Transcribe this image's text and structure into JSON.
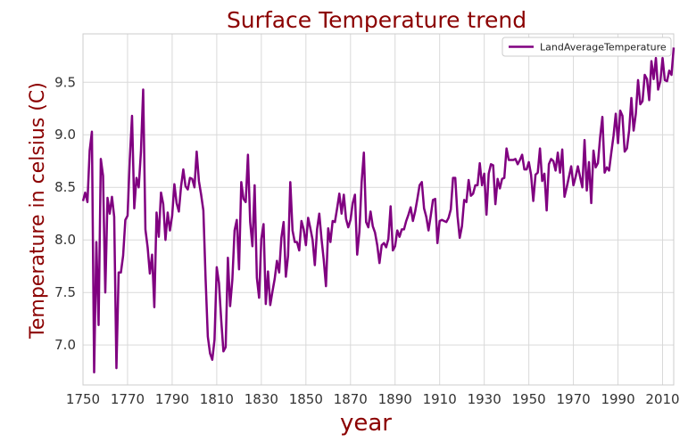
{
  "colors": {
    "line": "#800080",
    "title": "#8b0000",
    "grid": "#d9d9d9",
    "frame": "#cccccc",
    "tick_text": "#333333",
    "background": "#ffffff"
  },
  "chart_data": {
    "type": "line",
    "title": "Surface Temperature trend",
    "xlabel": "year",
    "ylabel": "Temperature in celsius (C)",
    "xlim": [
      1750,
      2015
    ],
    "ylim": [
      6.62,
      9.96
    ],
    "xticks": [
      1750,
      1770,
      1790,
      1810,
      1830,
      1850,
      1870,
      1890,
      1910,
      1930,
      1950,
      1970,
      1990,
      2010
    ],
    "yticks": [
      7.0,
      7.5,
      8.0,
      8.5,
      9.0,
      9.5
    ],
    "grid": true,
    "legend": {
      "position": "top-right",
      "entries": [
        "LandAverageTemperature"
      ]
    },
    "series": [
      {
        "name": "LandAverageTemperature",
        "x": [
          1750,
          1751,
          1752,
          1753,
          1754,
          1755,
          1756,
          1757,
          1758,
          1759,
          1760,
          1761,
          1762,
          1763,
          1764,
          1765,
          1766,
          1767,
          1768,
          1769,
          1770,
          1771,
          1772,
          1773,
          1774,
          1775,
          1776,
          1777,
          1778,
          1779,
          1780,
          1781,
          1782,
          1783,
          1784,
          1785,
          1786,
          1787,
          1788,
          1789,
          1790,
          1791,
          1792,
          1793,
          1794,
          1795,
          1796,
          1797,
          1798,
          1799,
          1800,
          1801,
          1802,
          1803,
          1804,
          1805,
          1806,
          1807,
          1808,
          1809,
          1810,
          1811,
          1812,
          1813,
          1814,
          1815,
          1816,
          1817,
          1818,
          1819,
          1820,
          1821,
          1822,
          1823,
          1824,
          1825,
          1826,
          1827,
          1828,
          1829,
          1830,
          1831,
          1832,
          1833,
          1834,
          1835,
          1836,
          1837,
          1838,
          1839,
          1840,
          1841,
          1842,
          1843,
          1844,
          1845,
          1846,
          1847,
          1848,
          1849,
          1850,
          1851,
          1852,
          1853,
          1854,
          1855,
          1856,
          1857,
          1858,
          1859,
          1860,
          1861,
          1862,
          1863,
          1864,
          1865,
          1866,
          1867,
          1868,
          1869,
          1870,
          1871,
          1872,
          1873,
          1874,
          1875,
          1876,
          1877,
          1878,
          1879,
          1880,
          1881,
          1882,
          1883,
          1884,
          1885,
          1886,
          1887,
          1888,
          1889,
          1890,
          1891,
          1892,
          1893,
          1894,
          1895,
          1896,
          1897,
          1898,
          1899,
          1900,
          1901,
          1902,
          1903,
          1904,
          1905,
          1906,
          1907,
          1908,
          1909,
          1910,
          1911,
          1912,
          1913,
          1914,
          1915,
          1916,
          1917,
          1918,
          1919,
          1920,
          1921,
          1922,
          1923,
          1924,
          1925,
          1926,
          1927,
          1928,
          1929,
          1930,
          1931,
          1932,
          1933,
          1934,
          1935,
          1936,
          1937,
          1938,
          1939,
          1940,
          1941,
          1942,
          1943,
          1944,
          1945,
          1946,
          1947,
          1948,
          1949,
          1950,
          1951,
          1952,
          1953,
          1954,
          1955,
          1956,
          1957,
          1958,
          1959,
          1960,
          1961,
          1962,
          1963,
          1964,
          1965,
          1966,
          1967,
          1968,
          1969,
          1970,
          1971,
          1972,
          1973,
          1974,
          1975,
          1976,
          1977,
          1978,
          1979,
          1980,
          1981,
          1982,
          1983,
          1984,
          1985,
          1986,
          1987,
          1988,
          1989,
          1990,
          1991,
          1992,
          1993,
          1994,
          1995,
          1996,
          1997,
          1998,
          1999,
          2000,
          2001,
          2002,
          2003,
          2004,
          2005,
          2006,
          2007,
          2008,
          2009,
          2010,
          2011,
          2012,
          2013,
          2014,
          2015
        ],
        "values": [
          8.37,
          8.45,
          8.36,
          8.85,
          9.03,
          6.74,
          7.98,
          7.19,
          8.77,
          8.61,
          7.5,
          8.4,
          8.25,
          8.41,
          8.22,
          6.78,
          7.69,
          7.69,
          7.85,
          8.19,
          8.23,
          8.77,
          9.18,
          8.3,
          8.59,
          8.5,
          8.84,
          9.43,
          8.1,
          7.93,
          7.68,
          7.86,
          7.36,
          8.26,
          8.03,
          8.45,
          8.34,
          8.0,
          8.26,
          8.09,
          8.23,
          8.53,
          8.35,
          8.27,
          8.51,
          8.67,
          8.51,
          8.48,
          8.59,
          8.58,
          8.5,
          8.84,
          8.56,
          8.43,
          8.28,
          7.63,
          7.08,
          6.92,
          6.86,
          7.05,
          7.74,
          7.59,
          7.24,
          6.94,
          6.98,
          7.83,
          7.37,
          7.62,
          8.09,
          8.19,
          7.72,
          8.55,
          8.39,
          8.36,
          8.81,
          8.17,
          7.94,
          8.52,
          7.64,
          7.45,
          8.01,
          8.15,
          7.39,
          7.7,
          7.38,
          7.51,
          7.63,
          7.8,
          7.69,
          8.02,
          8.17,
          7.65,
          7.85,
          8.55,
          8.09,
          7.98,
          7.98,
          7.9,
          8.18,
          8.1,
          7.95,
          8.21,
          8.11,
          8.0,
          7.76,
          8.1,
          8.25,
          8.01,
          7.81,
          7.56,
          8.11,
          7.98,
          8.18,
          8.17,
          8.3,
          8.44,
          8.25,
          8.43,
          8.2,
          8.12,
          8.19,
          8.35,
          8.43,
          7.86,
          8.08,
          8.55,
          8.83,
          8.17,
          8.12,
          8.27,
          8.13,
          8.07,
          7.95,
          7.78,
          7.95,
          7.97,
          7.93,
          8.01,
          8.32,
          7.9,
          7.94,
          8.09,
          8.03,
          8.1,
          8.1,
          8.18,
          8.24,
          8.31,
          8.18,
          8.27,
          8.39,
          8.52,
          8.55,
          8.3,
          8.22,
          8.09,
          8.23,
          8.38,
          8.39,
          7.97,
          8.18,
          8.19,
          8.18,
          8.17,
          8.21,
          8.29,
          8.59,
          8.59,
          8.23,
          8.02,
          8.13,
          8.38,
          8.36,
          8.57,
          8.42,
          8.44,
          8.52,
          8.52,
          8.73,
          8.52,
          8.63,
          8.24,
          8.63,
          8.72,
          8.71,
          8.34,
          8.58,
          8.49,
          8.58,
          8.59,
          8.87,
          8.76,
          8.76,
          8.76,
          8.77,
          8.72,
          8.76,
          8.81,
          8.67,
          8.67,
          8.74,
          8.62,
          8.37,
          8.62,
          8.64,
          8.87,
          8.56,
          8.63,
          8.28,
          8.72,
          8.77,
          8.75,
          8.66,
          8.83,
          8.64,
          8.86,
          8.41,
          8.5,
          8.6,
          8.7,
          8.52,
          8.6,
          8.7,
          8.6,
          8.5,
          8.95,
          8.47,
          8.74,
          8.35,
          8.85,
          8.69,
          8.73,
          8.98,
          9.17,
          8.64,
          8.69,
          8.66,
          8.83,
          8.99,
          9.2,
          8.92,
          9.23,
          9.18,
          8.84,
          8.87,
          9.04,
          9.35,
          9.04,
          9.2,
          9.52,
          9.29,
          9.32,
          9.57,
          9.53,
          9.33,
          9.7,
          9.53,
          9.73,
          9.43,
          9.51,
          9.73,
          9.52,
          9.51,
          9.61,
          9.57,
          9.83
        ]
      }
    ]
  }
}
